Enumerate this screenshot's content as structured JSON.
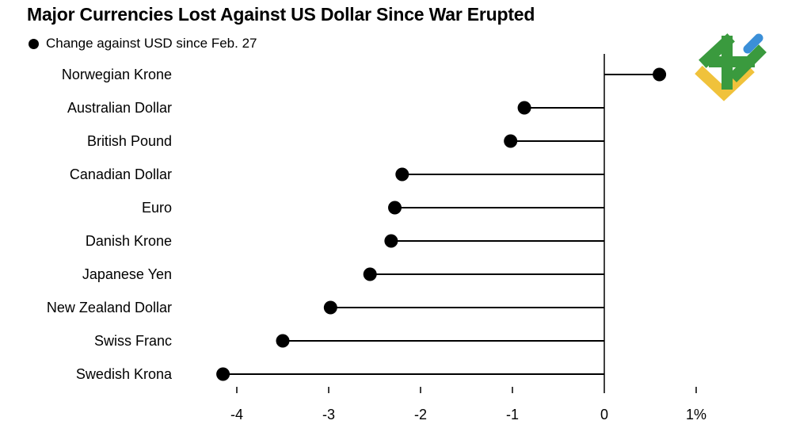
{
  "chart_data": {
    "type": "lollipop",
    "title": "Major Currencies Lost Against US Dollar Since War Erupted",
    "legend": {
      "label": "Change against USD since Feb. 27",
      "position": "top-left"
    },
    "xlabel": "",
    "ylabel": "",
    "xlim": [
      -4.3,
      1.0
    ],
    "x_ticks": [
      -4,
      -3,
      -2,
      -1,
      0,
      1
    ],
    "x_tick_labels": [
      "-4",
      "-3",
      "-2",
      "-1",
      "0",
      "1%"
    ],
    "grid": false,
    "categories": [
      "Norwegian Krone",
      "Australian Dollar",
      "British Pound",
      "Canadian Dollar",
      "Euro",
      "Danish Krone",
      "Japanese Yen",
      "New Zealand Dollar",
      "Swiss Franc",
      "Swedish Krona"
    ],
    "series": [
      {
        "name": "Change against USD since Feb. 27",
        "values": [
          0.6,
          -0.87,
          -1.02,
          -2.2,
          -2.28,
          -2.32,
          -2.55,
          -2.98,
          -3.5,
          -4.15
        ]
      }
    ]
  },
  "logo": {
    "colors": {
      "green": "#3a9a3e",
      "blue": "#3b8fd8",
      "yellow": "#f0c23b"
    }
  },
  "style": {
    "mark_color": "#000000"
  }
}
